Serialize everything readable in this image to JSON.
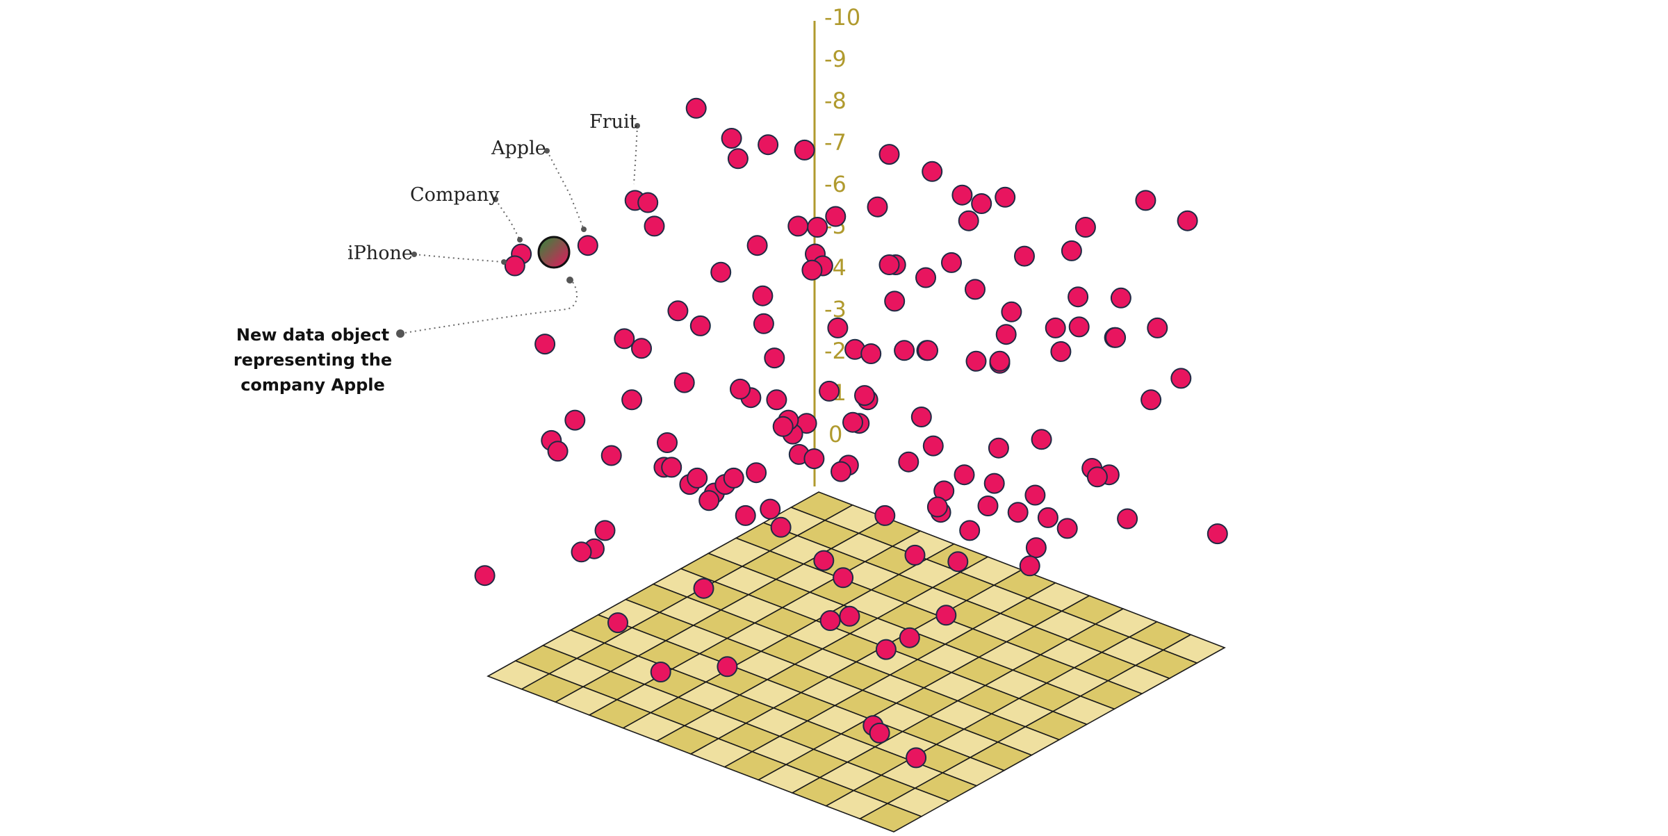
{
  "axis": {
    "tick_labels": [
      "0",
      "1",
      "2",
      "3",
      "4",
      "5",
      "6",
      "7",
      "8",
      "9",
      "10"
    ],
    "color": "#b09a2e"
  },
  "labels": {
    "fruit": "Fruit",
    "apple": "Apple",
    "company": "Company",
    "iphone": "iPhone"
  },
  "note_lines": [
    "New data object",
    "representing the",
    "company Apple"
  ],
  "colors": {
    "dot": "#e8155f",
    "dot_outline": "#1f2a44",
    "floor_light": "#efe0a0",
    "floor_dark": "#dcc96a",
    "new_object_gradient": [
      "#2e8b3a",
      "#e8155f"
    ]
  }
}
